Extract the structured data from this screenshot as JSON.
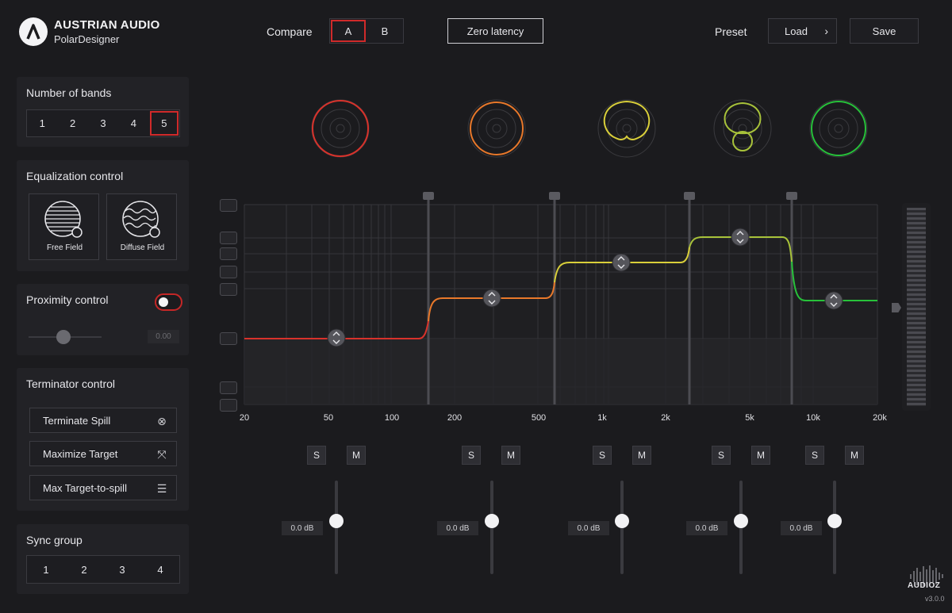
{
  "brand": {
    "name": "AUSTRIAN AUDIO",
    "product": "PolarDesigner",
    "logo_icon": "austrian-audio-logo-icon"
  },
  "header": {
    "compare_label": "Compare",
    "compare_options": [
      "A",
      "B"
    ],
    "compare_selected": "A",
    "zero_latency_label": "Zero latency",
    "preset_label": "Preset",
    "load_label": "Load",
    "save_label": "Save"
  },
  "bands": {
    "title": "Number of bands",
    "options": [
      "1",
      "2",
      "3",
      "4",
      "5"
    ],
    "selected": "5"
  },
  "equalization": {
    "title": "Equalization control",
    "free_field": "Free Field",
    "diffuse_field": "Diffuse Field"
  },
  "proximity": {
    "title": "Proximity control",
    "value": "0.00",
    "slider_fraction": 0.5
  },
  "terminator": {
    "title": "Terminator control",
    "items": [
      {
        "label": "Terminate Spill",
        "icon": "circle-x-icon"
      },
      {
        "label": "Maximize Target",
        "icon": "expand-arrows-icon"
      },
      {
        "label": "Max Target-to-spill",
        "icon": "checklist-icon"
      }
    ]
  },
  "sync": {
    "title": "Sync group",
    "options": [
      "1",
      "2",
      "3",
      "4"
    ]
  },
  "freq_labels": [
    "20",
    "50",
    "100",
    "200",
    "500",
    "1k",
    "2k",
    "5k",
    "10k",
    "20k"
  ],
  "band_colors": [
    "#d8322b",
    "#e8782a",
    "#d9cf3a",
    "#a8c23a",
    "#27c13a"
  ],
  "band_controls": [
    {
      "solo": "S",
      "mute": "M",
      "gain": "0.0 dB"
    },
    {
      "solo": "S",
      "mute": "M",
      "gain": "0.0 dB"
    },
    {
      "solo": "S",
      "mute": "M",
      "gain": "0.0 dB"
    },
    {
      "solo": "S",
      "mute": "M",
      "gain": "0.0 dB"
    },
    {
      "solo": "S",
      "mute": "M",
      "gain": "0.0 dB"
    }
  ],
  "watermark": {
    "text": "AUDIOZ",
    "version": "v3.0.0"
  }
}
